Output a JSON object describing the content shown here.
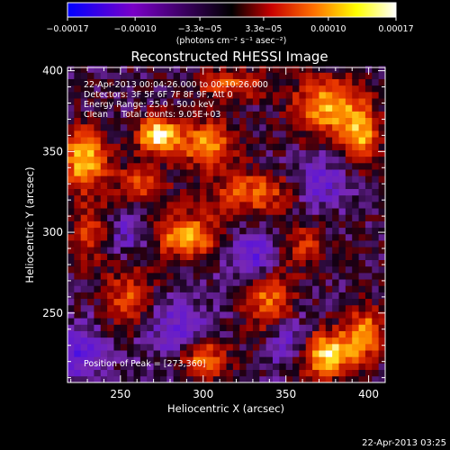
{
  "chart_data": {
    "type": "heatmap",
    "title": "Reconstructed RHESSI Image",
    "xlabel": "Heliocentric X (arcsec)",
    "ylabel": "Heliocentric Y (arcsec)",
    "xlim": [
      218,
      410
    ],
    "ylim": [
      207,
      402
    ],
    "xticks": [
      250,
      300,
      350,
      400
    ],
    "yticks": [
      250,
      300,
      350,
      400
    ],
    "colorbar": {
      "range": [
        -0.00017,
        0.00017
      ],
      "ticks": [
        -0.00017,
        -0.0001,
        -3.3e-05,
        3.3e-05,
        0.0001,
        0.00017
      ],
      "tick_labels": [
        "−0.00017",
        "−0.00010",
        "−3.3e−05",
        "3.3e−05",
        "0.00010",
        "0.00017"
      ],
      "unit_label": "(photons cm⁻² s⁻¹ asec⁻²)",
      "colors": [
        "#0000ff",
        "#7a00c8",
        "#000000",
        "#c80000",
        "#ff7000",
        "#ffff00",
        "#ffffff"
      ]
    },
    "annotations": [
      "22-Apr-2013 00:04:26.000 to 00:10:26.000",
      "Detectors: 3F 5F 6F 7F 8F 9F, Att 0",
      "Energy Range: 25.0 - 50.0 keV",
      "Clean     Total counts: 9.05E+03"
    ],
    "peak_label": "Position of Peak = [273,360]",
    "peak": [
      273,
      360
    ],
    "sources": [
      {
        "x": 273,
        "y": 360,
        "amp": 0.00017,
        "sx": 9,
        "sy": 8
      },
      {
        "x": 228,
        "y": 345,
        "amp": 0.00015,
        "sx": 10,
        "sy": 13
      },
      {
        "x": 290,
        "y": 298,
        "amp": 0.00013,
        "sx": 14,
        "sy": 10
      },
      {
        "x": 302,
        "y": 355,
        "amp": 0.00012,
        "sx": 12,
        "sy": 10
      },
      {
        "x": 330,
        "y": 325,
        "amp": 0.0001,
        "sx": 18,
        "sy": 9
      },
      {
        "x": 375,
        "y": 378,
        "amp": 0.00014,
        "sx": 14,
        "sy": 12
      },
      {
        "x": 395,
        "y": 360,
        "amp": 0.00013,
        "sx": 8,
        "sy": 12
      },
      {
        "x": 375,
        "y": 225,
        "amp": 0.00016,
        "sx": 13,
        "sy": 10
      },
      {
        "x": 398,
        "y": 238,
        "amp": 0.00012,
        "sx": 8,
        "sy": 10
      },
      {
        "x": 300,
        "y": 222,
        "amp": 0.00012,
        "sx": 10,
        "sy": 9
      },
      {
        "x": 255,
        "y": 260,
        "amp": 9e-05,
        "sx": 10,
        "sy": 12
      },
      {
        "x": 340,
        "y": 258,
        "amp": 0.00011,
        "sx": 10,
        "sy": 14
      },
      {
        "x": 232,
        "y": 300,
        "amp": 8e-05,
        "sx": 8,
        "sy": 14
      },
      {
        "x": 318,
        "y": 392,
        "amp": 9e-05,
        "sx": 16,
        "sy": 6
      },
      {
        "x": 360,
        "y": 292,
        "amp": 7e-05,
        "sx": 10,
        "sy": 10
      },
      {
        "x": 262,
        "y": 330,
        "amp": 9e-05,
        "sx": 10,
        "sy": 8
      },
      {
        "x": 225,
        "y": 225,
        "amp": -8e-05,
        "sx": 12,
        "sy": 12
      },
      {
        "x": 285,
        "y": 240,
        "amp": -7e-05,
        "sx": 14,
        "sy": 14
      },
      {
        "x": 330,
        "y": 285,
        "amp": -9e-05,
        "sx": 12,
        "sy": 10
      },
      {
        "x": 255,
        "y": 300,
        "amp": -6e-05,
        "sx": 10,
        "sy": 10
      },
      {
        "x": 370,
        "y": 330,
        "amp": -7e-05,
        "sx": 12,
        "sy": 12
      },
      {
        "x": 352,
        "y": 232,
        "amp": -8e-05,
        "sx": 10,
        "sy": 12
      }
    ]
  },
  "footer": {
    "timestamp": "22-Apr-2013 03:25"
  }
}
